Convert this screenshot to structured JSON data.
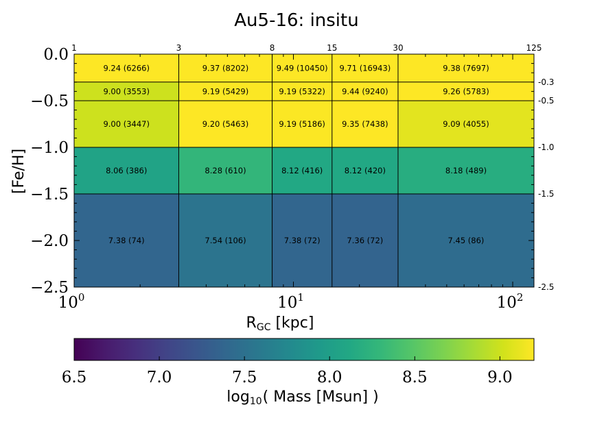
{
  "chart_data": {
    "type": "heatmap",
    "title": "Au5-16: insitu",
    "xlabel": "R",
    "xlabel_subscript": "GC",
    "xlabel_unit": "[kpc]",
    "ylabel": "[Fe/H]",
    "x_scale": "log",
    "xlim": [
      1,
      125
    ],
    "ylim": [
      -2.5,
      0.0
    ],
    "x_edges": [
      1,
      3,
      8,
      15,
      30,
      125
    ],
    "y_edges": [
      0.0,
      -0.3,
      -0.5,
      -1.0,
      -1.5,
      -2.5
    ],
    "x_top_tick_labels": [
      "1",
      "3",
      "8",
      "15",
      "30",
      "125"
    ],
    "y_right_tick_labels": [
      "-0.3",
      "-0.5",
      "-1.0",
      "-1.5",
      "-2.5"
    ],
    "x_tick_labels": [
      {
        "base": "10",
        "exp": "0",
        "value": 1
      },
      {
        "base": "10",
        "exp": "1",
        "value": 10
      },
      {
        "base": "10",
        "exp": "2",
        "value": 100
      }
    ],
    "y_tick_labels": [
      {
        "label": "0.0",
        "value": 0.0
      },
      {
        "label": "−0.5",
        "value": -0.5
      },
      {
        "label": "−1.0",
        "value": -1.0
      },
      {
        "label": "−1.5",
        "value": -1.5
      },
      {
        "label": "−2.0",
        "value": -2.0
      },
      {
        "label": "−2.5",
        "value": -2.5
      }
    ],
    "cells": [
      [
        {
          "value": 9.24,
          "label": "9.24 (6266)"
        },
        {
          "value": 9.37,
          "label": "9.37 (8202)"
        },
        {
          "value": 9.49,
          "label": "9.49 (10450)"
        },
        {
          "value": 9.71,
          "label": "9.71 (16943)"
        },
        {
          "value": 9.38,
          "label": "9.38 (7697)"
        }
      ],
      [
        {
          "value": 9.0,
          "label": "9.00 (3553)"
        },
        {
          "value": 9.19,
          "label": "9.19 (5429)"
        },
        {
          "value": 9.19,
          "label": "9.19 (5322)"
        },
        {
          "value": 9.44,
          "label": "9.44 (9240)"
        },
        {
          "value": 9.26,
          "label": "9.26 (5783)"
        }
      ],
      [
        {
          "value": 9.0,
          "label": "9.00 (3447)"
        },
        {
          "value": 9.2,
          "label": "9.20 (5463)"
        },
        {
          "value": 9.19,
          "label": "9.19 (5186)"
        },
        {
          "value": 9.35,
          "label": "9.35 (7438)"
        },
        {
          "value": 9.09,
          "label": "9.09 (4055)"
        }
      ],
      [
        {
          "value": 8.06,
          "label": "8.06 (386)"
        },
        {
          "value": 8.28,
          "label": "8.28 (610)"
        },
        {
          "value": 8.12,
          "label": "8.12 (416)"
        },
        {
          "value": 8.12,
          "label": "8.12 (420)"
        },
        {
          "value": 8.18,
          "label": "8.18 (489)"
        }
      ],
      [
        {
          "value": 7.38,
          "label": "7.38 (74)"
        },
        {
          "value": 7.54,
          "label": "7.54 (106)"
        },
        {
          "value": 7.38,
          "label": "7.38 (72)"
        },
        {
          "value": 7.36,
          "label": "7.36 (72)"
        },
        {
          "value": 7.45,
          "label": "7.45 (86)"
        }
      ]
    ],
    "colorbar": {
      "colormap": "viridis",
      "range": [
        6.5,
        9.2
      ],
      "label_prefix": "log",
      "label_subscript": "10",
      "label_suffix": "( Mass [Msun] )",
      "ticks": [
        {
          "label": "6.5",
          "value": 6.5
        },
        {
          "label": "7.0",
          "value": 7.0
        },
        {
          "label": "7.5",
          "value": 7.5
        },
        {
          "label": "8.0",
          "value": 8.0
        },
        {
          "label": "8.5",
          "value": 8.5
        },
        {
          "label": "9.0",
          "value": 9.0
        }
      ]
    }
  }
}
